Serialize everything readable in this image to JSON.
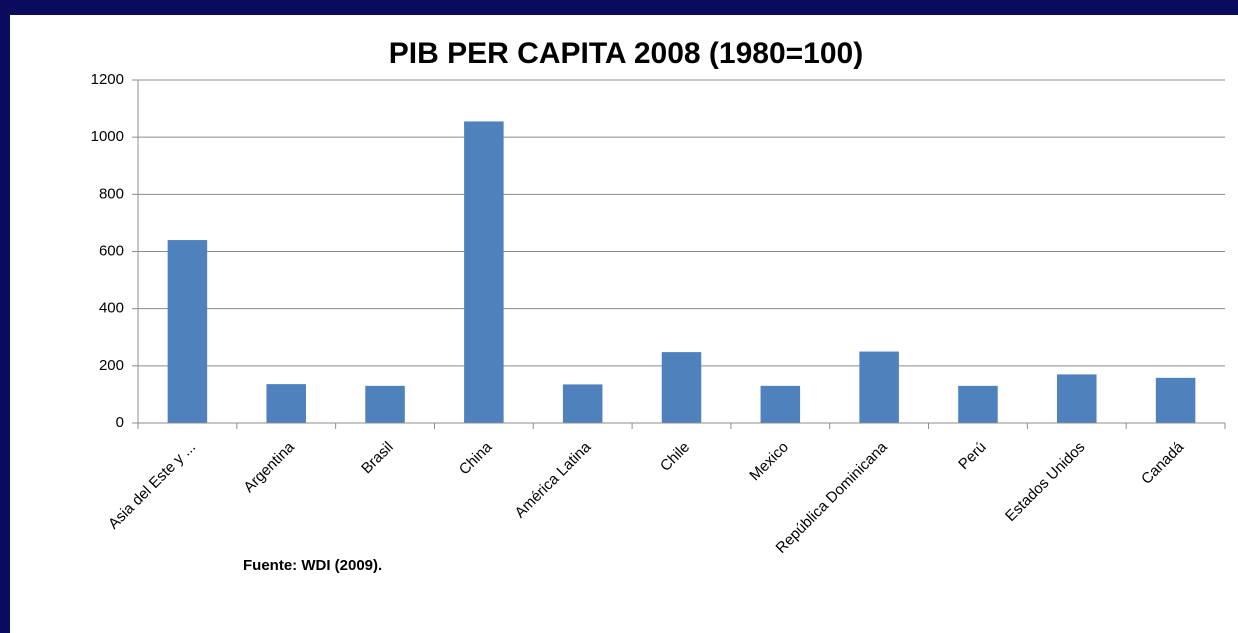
{
  "chart_data": {
    "type": "bar",
    "title": "PIB PER CAPITA 2008 (1980=100)",
    "categories": [
      "Asia del Este y ...",
      "Argentina",
      "Brasil",
      "China",
      "América Latina",
      "Chile",
      "Mexico",
      "República Dominicana",
      "Perú",
      "Estados Unidos",
      "Canadá"
    ],
    "values": [
      640,
      136,
      130,
      1055,
      135,
      248,
      130,
      250,
      130,
      170,
      158
    ],
    "color": "#4f81bd",
    "ylim": [
      0,
      1200
    ],
    "yticks": [
      0,
      200,
      400,
      600,
      800,
      1000,
      1200
    ],
    "grid": true,
    "annotation": "Fuente: WDI (2009)."
  }
}
